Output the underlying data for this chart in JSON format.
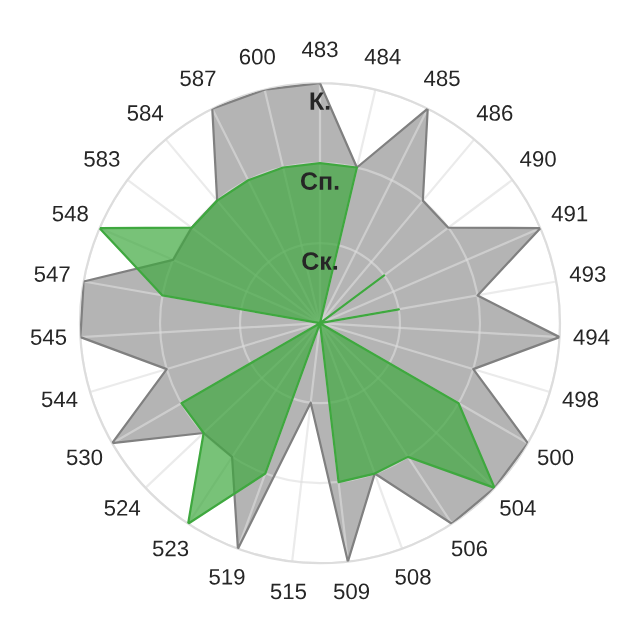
{
  "chart_data": {
    "type": "radar",
    "categories": [
      "483",
      "484",
      "485",
      "486",
      "490",
      "491",
      "493",
      "494",
      "498",
      "500",
      "504",
      "506",
      "508",
      "509",
      "515",
      "519",
      "523",
      "524",
      "530",
      "544",
      "545",
      "547",
      "548",
      "583",
      "584",
      "587",
      "600"
    ],
    "series": [
      {
        "color": "#b4b4b4",
        "values": [
          3,
          2,
          3,
          2,
          2,
          3,
          2,
          3,
          2,
          3,
          3,
          3,
          2,
          3,
          1,
          3,
          2,
          2,
          3,
          2,
          3,
          3,
          2,
          2,
          2,
          3,
          3
        ]
      },
      {
        "color": "#3fa83f",
        "values": [
          2,
          2,
          0,
          0,
          1,
          0,
          1,
          0,
          0,
          2,
          3,
          2,
          2,
          2,
          0,
          2,
          3,
          2,
          2,
          0,
          0,
          2,
          3,
          2,
          2,
          2,
          2
        ]
      }
    ],
    "ylim": [
      0,
      3
    ],
    "yticks": [
      {
        "value": 1,
        "label": "Ск."
      },
      {
        "value": 2,
        "label": "Сп."
      },
      {
        "value": 3,
        "label": "К."
      }
    ],
    "grid": true,
    "legend": false,
    "marker": "none"
  }
}
